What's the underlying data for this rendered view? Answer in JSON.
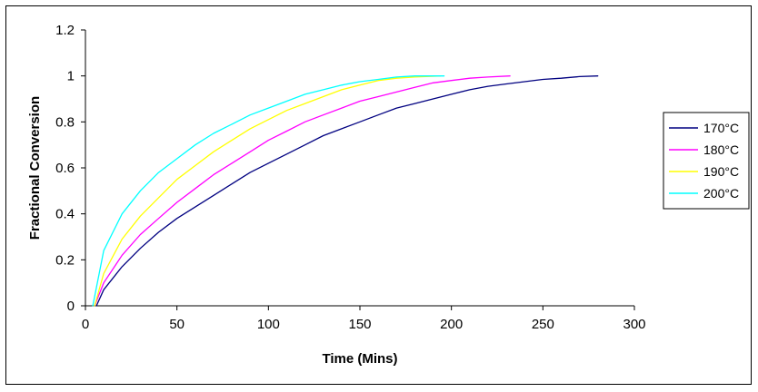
{
  "chart_data": {
    "type": "line",
    "title": "",
    "xlabel": "Time (Mins)",
    "ylabel": "Fractional Conversion",
    "xlim": [
      0,
      300
    ],
    "ylim": [
      0,
      1.2
    ],
    "x_ticks": [
      0,
      50,
      100,
      150,
      200,
      250,
      300
    ],
    "y_ticks": [
      0,
      0.2,
      0.4,
      0.6,
      0.8,
      1,
      1.2
    ],
    "x_tick_labels": [
      "0",
      "50",
      "100",
      "150",
      "200",
      "250",
      "300"
    ],
    "y_tick_labels": [
      "0",
      "0.2",
      "0.4",
      "0.6",
      "0.8",
      "1",
      "1.2"
    ],
    "grid": false,
    "legend_position": "right",
    "series": [
      {
        "name": "170°C",
        "color": "#000080",
        "x": [
          6,
          10,
          20,
          30,
          40,
          50,
          60,
          70,
          80,
          90,
          100,
          110,
          120,
          130,
          140,
          150,
          160,
          170,
          180,
          190,
          200,
          210,
          220,
          230,
          240,
          250,
          260,
          270,
          280
        ],
        "y": [
          0,
          0.07,
          0.17,
          0.25,
          0.32,
          0.38,
          0.43,
          0.48,
          0.53,
          0.58,
          0.62,
          0.66,
          0.7,
          0.74,
          0.77,
          0.8,
          0.83,
          0.86,
          0.88,
          0.9,
          0.92,
          0.94,
          0.955,
          0.965,
          0.975,
          0.985,
          0.99,
          0.997,
          1.0
        ]
      },
      {
        "name": "180°C",
        "color": "#FF00FF",
        "x": [
          5,
          10,
          20,
          30,
          40,
          50,
          60,
          70,
          80,
          90,
          100,
          110,
          120,
          130,
          140,
          150,
          160,
          170,
          180,
          190,
          200,
          210,
          220,
          232
        ],
        "y": [
          0,
          0.1,
          0.22,
          0.31,
          0.38,
          0.45,
          0.51,
          0.57,
          0.62,
          0.67,
          0.72,
          0.76,
          0.8,
          0.83,
          0.86,
          0.89,
          0.91,
          0.93,
          0.95,
          0.97,
          0.98,
          0.99,
          0.995,
          1.0
        ]
      },
      {
        "name": "190°C",
        "color": "#FFFF00",
        "x": [
          5,
          10,
          20,
          30,
          40,
          50,
          60,
          70,
          80,
          90,
          100,
          110,
          120,
          130,
          140,
          150,
          160,
          170,
          180,
          194
        ],
        "y": [
          0,
          0.14,
          0.29,
          0.39,
          0.47,
          0.55,
          0.61,
          0.67,
          0.72,
          0.77,
          0.81,
          0.85,
          0.88,
          0.91,
          0.94,
          0.96,
          0.98,
          0.99,
          0.995,
          1.0
        ]
      },
      {
        "name": "200°C",
        "color": "#00FFFF",
        "x": [
          4,
          10,
          20,
          30,
          40,
          50,
          60,
          70,
          80,
          90,
          100,
          110,
          120,
          130,
          140,
          150,
          160,
          170,
          180,
          196
        ],
        "y": [
          0,
          0.24,
          0.4,
          0.5,
          0.58,
          0.64,
          0.7,
          0.75,
          0.79,
          0.83,
          0.86,
          0.89,
          0.92,
          0.94,
          0.96,
          0.975,
          0.985,
          0.995,
          1.0,
          1.0
        ]
      }
    ]
  }
}
